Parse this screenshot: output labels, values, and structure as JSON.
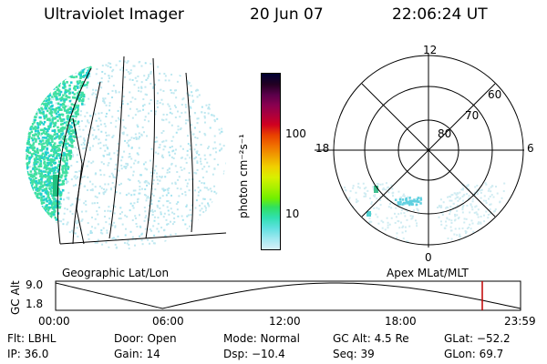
{
  "header": {
    "instrument": "Ultraviolet Imager",
    "date": "20 Jun 07",
    "time": "22:06:24 UT"
  },
  "colorbar": {
    "label": "photon cm⁻²s⁻¹",
    "ticks": [
      "100",
      "10"
    ],
    "colors": [
      "#000033",
      "#220022",
      "#5a004a",
      "#8a0050",
      "#b0003a",
      "#d00020",
      "#e84000",
      "#f07000",
      "#f0a000",
      "#f0d000",
      "#d8f000",
      "#a8f000",
      "#70f000",
      "#30e060",
      "#30e0b0",
      "#60e0e0",
      "#a0e8f0",
      "#d8f0f8"
    ]
  },
  "left_panel": {
    "caption": "Geographic Lat/Lon",
    "colors": {
      "oval": "#40e0a0",
      "noise": "#c0e8f0",
      "edge": "#20d0d0"
    }
  },
  "right_panel": {
    "caption": "Apex MLat/MLT",
    "mlt_labels": {
      "top": "12",
      "left": "18",
      "right": "6",
      "bottom": "0"
    },
    "mlat_labels": [
      "60",
      "70",
      "80"
    ]
  },
  "altitude_plot": {
    "ylabel": "GC Alt",
    "yticks": [
      "9.0",
      "1.8"
    ],
    "xticks": [
      "00:00",
      "06:00",
      "12:00",
      "18:00",
      "23:59"
    ],
    "marker_color": "#c00000"
  },
  "info": {
    "filter": "Flt: LBHL",
    "door": "Door: Open",
    "mode": "Mode: Normal",
    "gc_alt": "GC Alt: 4.5 Re",
    "glat": "GLat: −52.2",
    "ip": "IP: 36.0",
    "gain": "Gain: 14",
    "dsp": "Dsp:  −10.4",
    "seq": "Seq: 39",
    "glon": "GLon:  69.7"
  }
}
